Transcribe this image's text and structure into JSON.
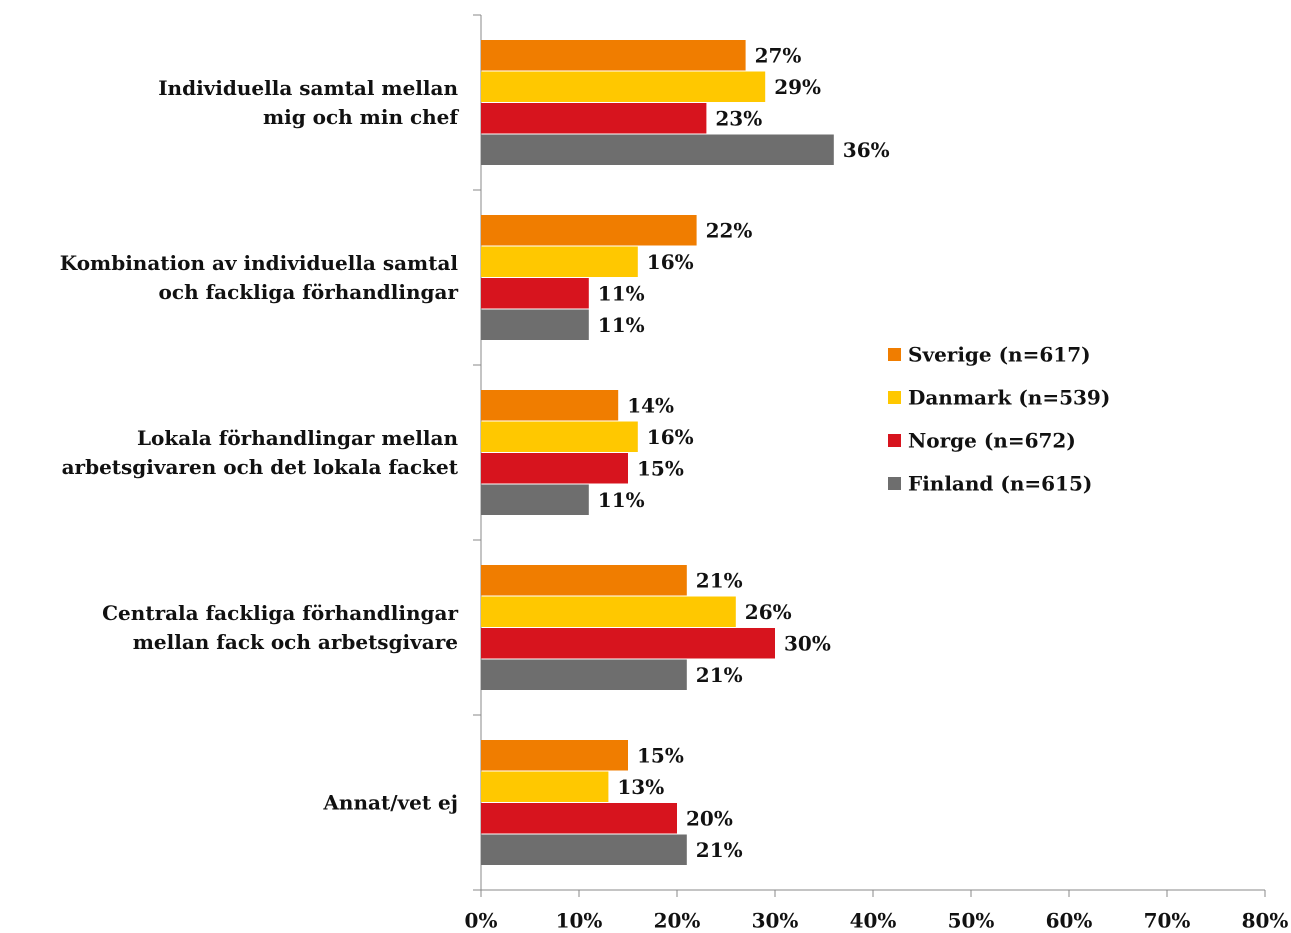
{
  "chart_data": {
    "type": "barh",
    "categories": [
      "Individuella samtal mellan\nmig och min chef",
      "Kombination av individuella samtal\noch fackliga förhandlingar",
      "Lokala förhandlingar mellan\narbetsgivaren och det lokala facket",
      "Centrala fackliga förhandlingar\nmellan fack och arbetsgivare",
      "Annat/vet ej"
    ],
    "series": [
      {
        "name": "Sverige (n=617)",
        "color": "#f07d00",
        "values": [
          27,
          22,
          14,
          21,
          15
        ],
        "value_labels": [
          "27%",
          "22%",
          "14%",
          "21%",
          "15%"
        ]
      },
      {
        "name": "Danmark (n=539)",
        "color": "#ffc800",
        "values": [
          29,
          16,
          16,
          26,
          13
        ],
        "value_labels": [
          "29%",
          "16%",
          "16%",
          "26%",
          "13%"
        ]
      },
      {
        "name": "Norge (n=672)",
        "color": "#d7141e",
        "values": [
          23,
          11,
          15,
          30,
          20
        ],
        "value_labels": [
          "23%",
          "11%",
          "15%",
          "30%",
          "20%"
        ]
      },
      {
        "name": "Finland (n=615)",
        "color": "#6e6e6e",
        "values": [
          36,
          11,
          11,
          21,
          21
        ],
        "value_labels": [
          "36%",
          "11%",
          "11%",
          "21%",
          "21%"
        ]
      }
    ],
    "xlim": [
      0,
      80
    ],
    "xticks": [
      {
        "value": 0,
        "label": "0%"
      },
      {
        "value": 10,
        "label": "10%"
      },
      {
        "value": 20,
        "label": "20%"
      },
      {
        "value": 30,
        "label": "30%"
      },
      {
        "value": 40,
        "label": "40%"
      },
      {
        "value": 50,
        "label": "50%"
      },
      {
        "value": 60,
        "label": "60%"
      },
      {
        "value": 70,
        "label": "70%"
      },
      {
        "value": 80,
        "label": "80%"
      }
    ],
    "legend": "right"
  }
}
